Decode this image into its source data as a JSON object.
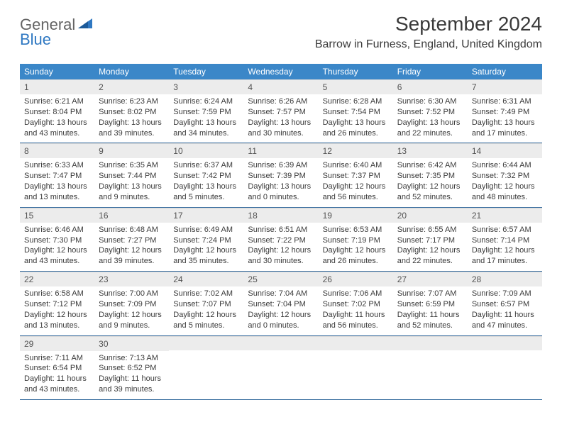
{
  "logo": {
    "general": "General",
    "blue": "Blue"
  },
  "title": "September 2024",
  "location": "Barrow in Furness, England, United Kingdom",
  "colors": {
    "header_bg": "#3b87c8",
    "header_text": "#ffffff",
    "daynum_bg": "#ececec",
    "daynum_text": "#535353",
    "body_text": "#3a3a3a",
    "rule": "#3b6fa0",
    "logo_gray": "#646464",
    "logo_blue": "#2f78c2"
  },
  "dow": [
    "Sunday",
    "Monday",
    "Tuesday",
    "Wednesday",
    "Thursday",
    "Friday",
    "Saturday"
  ],
  "weeks": [
    [
      {
        "n": "1",
        "sr": "6:21 AM",
        "ss": "8:04 PM",
        "dl": "13 hours and 43 minutes."
      },
      {
        "n": "2",
        "sr": "6:23 AM",
        "ss": "8:02 PM",
        "dl": "13 hours and 39 minutes."
      },
      {
        "n": "3",
        "sr": "6:24 AM",
        "ss": "7:59 PM",
        "dl": "13 hours and 34 minutes."
      },
      {
        "n": "4",
        "sr": "6:26 AM",
        "ss": "7:57 PM",
        "dl": "13 hours and 30 minutes."
      },
      {
        "n": "5",
        "sr": "6:28 AM",
        "ss": "7:54 PM",
        "dl": "13 hours and 26 minutes."
      },
      {
        "n": "6",
        "sr": "6:30 AM",
        "ss": "7:52 PM",
        "dl": "13 hours and 22 minutes."
      },
      {
        "n": "7",
        "sr": "6:31 AM",
        "ss": "7:49 PM",
        "dl": "13 hours and 17 minutes."
      }
    ],
    [
      {
        "n": "8",
        "sr": "6:33 AM",
        "ss": "7:47 PM",
        "dl": "13 hours and 13 minutes."
      },
      {
        "n": "9",
        "sr": "6:35 AM",
        "ss": "7:44 PM",
        "dl": "13 hours and 9 minutes."
      },
      {
        "n": "10",
        "sr": "6:37 AM",
        "ss": "7:42 PM",
        "dl": "13 hours and 5 minutes."
      },
      {
        "n": "11",
        "sr": "6:39 AM",
        "ss": "7:39 PM",
        "dl": "13 hours and 0 minutes."
      },
      {
        "n": "12",
        "sr": "6:40 AM",
        "ss": "7:37 PM",
        "dl": "12 hours and 56 minutes."
      },
      {
        "n": "13",
        "sr": "6:42 AM",
        "ss": "7:35 PM",
        "dl": "12 hours and 52 minutes."
      },
      {
        "n": "14",
        "sr": "6:44 AM",
        "ss": "7:32 PM",
        "dl": "12 hours and 48 minutes."
      }
    ],
    [
      {
        "n": "15",
        "sr": "6:46 AM",
        "ss": "7:30 PM",
        "dl": "12 hours and 43 minutes."
      },
      {
        "n": "16",
        "sr": "6:48 AM",
        "ss": "7:27 PM",
        "dl": "12 hours and 39 minutes."
      },
      {
        "n": "17",
        "sr": "6:49 AM",
        "ss": "7:24 PM",
        "dl": "12 hours and 35 minutes."
      },
      {
        "n": "18",
        "sr": "6:51 AM",
        "ss": "7:22 PM",
        "dl": "12 hours and 30 minutes."
      },
      {
        "n": "19",
        "sr": "6:53 AM",
        "ss": "7:19 PM",
        "dl": "12 hours and 26 minutes."
      },
      {
        "n": "20",
        "sr": "6:55 AM",
        "ss": "7:17 PM",
        "dl": "12 hours and 22 minutes."
      },
      {
        "n": "21",
        "sr": "6:57 AM",
        "ss": "7:14 PM",
        "dl": "12 hours and 17 minutes."
      }
    ],
    [
      {
        "n": "22",
        "sr": "6:58 AM",
        "ss": "7:12 PM",
        "dl": "12 hours and 13 minutes."
      },
      {
        "n": "23",
        "sr": "7:00 AM",
        "ss": "7:09 PM",
        "dl": "12 hours and 9 minutes."
      },
      {
        "n": "24",
        "sr": "7:02 AM",
        "ss": "7:07 PM",
        "dl": "12 hours and 5 minutes."
      },
      {
        "n": "25",
        "sr": "7:04 AM",
        "ss": "7:04 PM",
        "dl": "12 hours and 0 minutes."
      },
      {
        "n": "26",
        "sr": "7:06 AM",
        "ss": "7:02 PM",
        "dl": "11 hours and 56 minutes."
      },
      {
        "n": "27",
        "sr": "7:07 AM",
        "ss": "6:59 PM",
        "dl": "11 hours and 52 minutes."
      },
      {
        "n": "28",
        "sr": "7:09 AM",
        "ss": "6:57 PM",
        "dl": "11 hours and 47 minutes."
      }
    ],
    [
      {
        "n": "29",
        "sr": "7:11 AM",
        "ss": "6:54 PM",
        "dl": "11 hours and 43 minutes."
      },
      {
        "n": "30",
        "sr": "7:13 AM",
        "ss": "6:52 PM",
        "dl": "11 hours and 39 minutes."
      },
      null,
      null,
      null,
      null,
      null
    ]
  ],
  "labels": {
    "sunrise": "Sunrise:",
    "sunset": "Sunset:",
    "daylight": "Daylight:"
  }
}
